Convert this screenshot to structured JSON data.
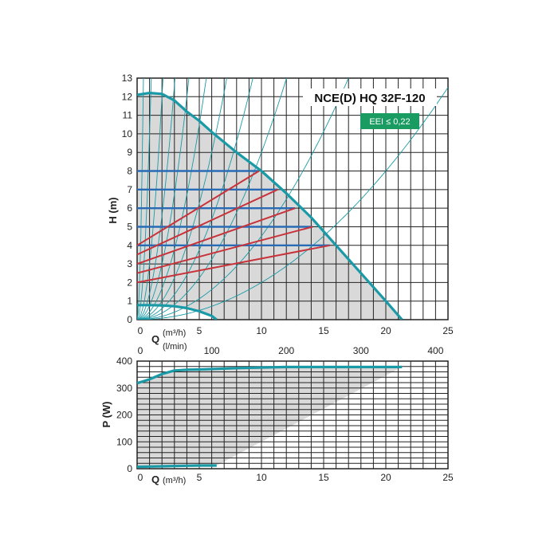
{
  "model_label": "NCE(D) HQ 32F-120",
  "eei_badge": {
    "text": "EEI ≤ 0,22",
    "color": "#1a9b62"
  },
  "colors": {
    "pump_curve": "#1a9aa6",
    "system_curves": "#1a9aa6",
    "constant_pressure": "#2a6bb5",
    "proportional_pressure": "#c8323a",
    "operating_area": "#d9d9d9",
    "grid": "#222222"
  },
  "chart_data": [
    {
      "type": "line",
      "ylabel": "H (m)",
      "x_axis_label": "Q",
      "x_unit": "(m³/h)",
      "secondary_x_unit": "(l/min)",
      "xlim": [
        0,
        25
      ],
      "ylim": [
        0,
        13
      ],
      "x_ticks": [
        "0",
        "5",
        "10",
        "15",
        "20",
        "25"
      ],
      "y_ticks": [
        "0",
        "1",
        "2",
        "3",
        "4",
        "5",
        "6",
        "7",
        "8",
        "9",
        "10",
        "11",
        "12",
        "13"
      ],
      "secondary_x_ticks": [
        "0",
        "100",
        "200",
        "300",
        "400"
      ],
      "grid": true,
      "series": [
        {
          "role": "max_curve",
          "x": [
            0,
            1,
            2,
            3,
            4,
            5,
            6,
            8,
            10,
            12,
            14,
            16,
            18,
            20,
            21.3
          ],
          "y": [
            12.1,
            12.2,
            12.15,
            11.8,
            11.2,
            10.7,
            10.1,
            9.0,
            8.0,
            6.8,
            5.5,
            4.0,
            2.5,
            1.0,
            0
          ]
        },
        {
          "role": "min_curve",
          "x": [
            0,
            1,
            2,
            3,
            4,
            5,
            6,
            6.4
          ],
          "y": [
            0.78,
            0.78,
            0.77,
            0.72,
            0.62,
            0.45,
            0.2,
            0
          ]
        },
        {
          "role": "constant_pressure",
          "x": [
            0,
            9.8
          ],
          "y": [
            8,
            8
          ]
        },
        {
          "role": "constant_pressure",
          "x": [
            0,
            11.3
          ],
          "y": [
            7,
            7
          ]
        },
        {
          "role": "constant_pressure",
          "x": [
            0,
            12.7
          ],
          "y": [
            6,
            6
          ]
        },
        {
          "role": "constant_pressure",
          "x": [
            0,
            14.1
          ],
          "y": [
            5,
            5
          ]
        },
        {
          "role": "constant_pressure",
          "x": [
            0,
            15.5
          ],
          "y": [
            4,
            4
          ]
        },
        {
          "role": "proportional_pressure",
          "x": [
            0,
            9.8
          ],
          "y": [
            4,
            8
          ]
        },
        {
          "role": "proportional_pressure",
          "x": [
            0,
            11.3
          ],
          "y": [
            3.5,
            7
          ]
        },
        {
          "role": "proportional_pressure",
          "x": [
            0,
            12.7
          ],
          "y": [
            3,
            6
          ]
        },
        {
          "role": "proportional_pressure",
          "x": [
            0,
            14.1
          ],
          "y": [
            2.5,
            5
          ]
        },
        {
          "role": "proportional_pressure",
          "x": [
            0,
            15.5
          ],
          "y": [
            2,
            4
          ]
        }
      ],
      "system_curve_coefficients": [
        50,
        10,
        3,
        1.4,
        0.75,
        0.42,
        0.25,
        0.15,
        0.09,
        0.045,
        0.02
      ]
    },
    {
      "type": "line",
      "ylabel": "P (W)",
      "x_axis_label": "Q",
      "x_unit": "(m³/h)",
      "xlim": [
        0,
        25
      ],
      "ylim": [
        0,
        400
      ],
      "x_ticks": [
        "0",
        "5",
        "10",
        "15",
        "20",
        "25"
      ],
      "y_ticks": [
        "0",
        "100",
        "200",
        "300",
        "400"
      ],
      "grid": true,
      "series": [
        {
          "role": "max_power",
          "x": [
            0,
            1,
            2,
            3,
            4,
            5,
            8,
            12,
            16,
            20,
            21.3
          ],
          "y": [
            318,
            332,
            352,
            365,
            368,
            369,
            374,
            378,
            378,
            378,
            378
          ]
        },
        {
          "role": "min_power",
          "x": [
            0,
            1,
            2,
            3,
            4,
            5,
            6.4
          ],
          "y": [
            7,
            8,
            9,
            10,
            11,
            12,
            12
          ]
        }
      ]
    }
  ]
}
